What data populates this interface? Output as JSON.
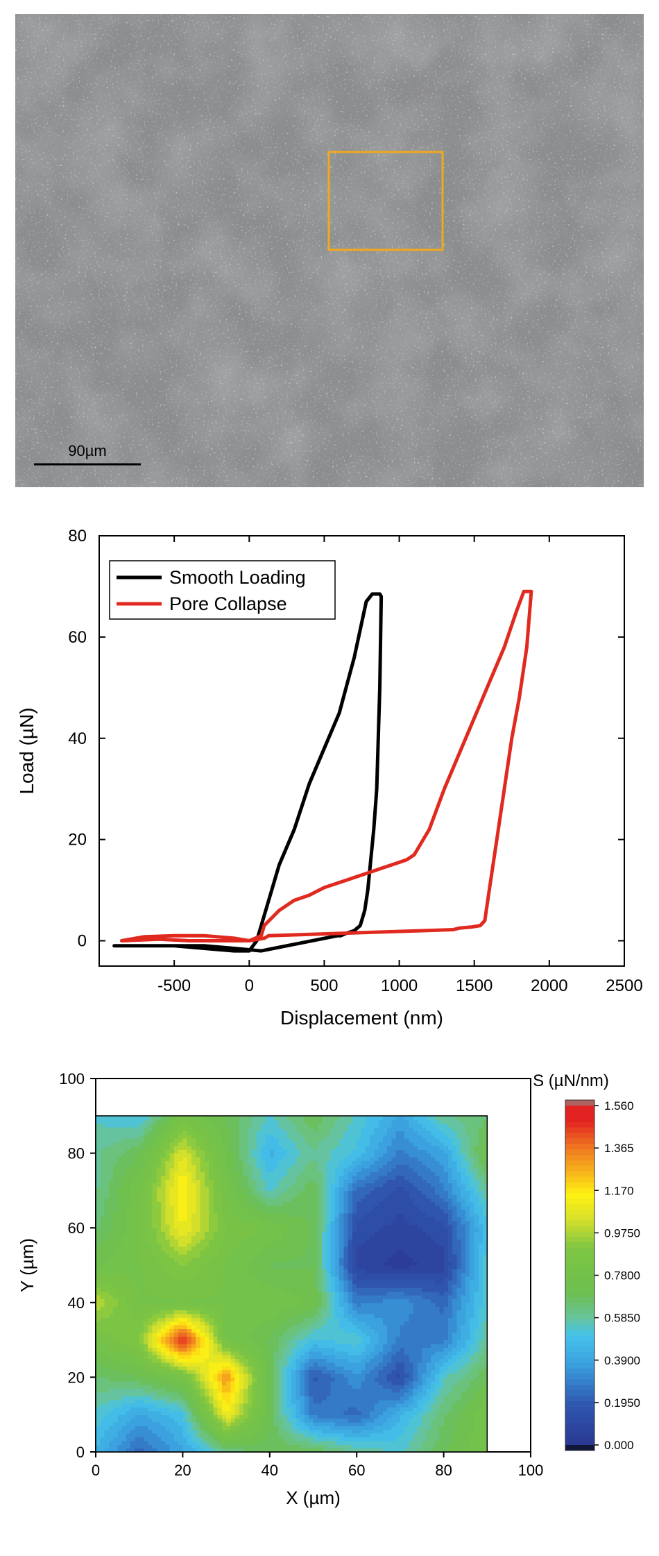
{
  "micrograph": {
    "scale_bar_label": "90µm",
    "roi_color": "#f2a81d",
    "background_color": "#8c8d8e"
  },
  "chart_data": [
    {
      "type": "line",
      "xlabel": "Displacement (nm)",
      "ylabel": "Load (µN)",
      "xlim": [
        -1000,
        2500
      ],
      "ylim": [
        -5,
        80
      ],
      "xticks": [
        "-500",
        "0",
        "500",
        "1000",
        "1500",
        "2000",
        "2500"
      ],
      "yticks": [
        "0",
        "20",
        "40",
        "60",
        "80"
      ],
      "legend_position": "top-left",
      "series": [
        {
          "name": "Smooth Loading",
          "color": "#000000",
          "x": [
            -900,
            -700,
            -500,
            -300,
            -100,
            0,
            50,
            100,
            150,
            200,
            300,
            400,
            500,
            600,
            700,
            780,
            820,
            850,
            870,
            880,
            870,
            860,
            850,
            830,
            810,
            790,
            770,
            740,
            700,
            650,
            610,
            590,
            80,
            -100,
            -300,
            -500,
            -700,
            -900
          ],
          "y": [
            -1,
            -1,
            -1,
            -1.5,
            -2,
            -2,
            0,
            5,
            10,
            15,
            22,
            31,
            38,
            45,
            56,
            67,
            68.5,
            68.5,
            68.5,
            68,
            50,
            40,
            30,
            22,
            16,
            10,
            6,
            3,
            2,
            1.5,
            1,
            1,
            -2,
            -1.5,
            -1,
            -1,
            -1,
            -1
          ]
        },
        {
          "name": "Pore Collapse",
          "color": "#e02a20",
          "x": [
            -850,
            -700,
            -500,
            -300,
            -100,
            0,
            80,
            100,
            200,
            300,
            400,
            500,
            600,
            700,
            800,
            900,
            1000,
            1050,
            1100,
            1200,
            1300,
            1400,
            1500,
            1600,
            1700,
            1780,
            1830,
            1870,
            1880,
            1850,
            1800,
            1750,
            1700,
            1650,
            1600,
            1570,
            1540,
            1480,
            1400,
            1360,
            130,
            100,
            0,
            -200,
            -400,
            -600,
            -850
          ],
          "y": [
            0,
            0.8,
            1,
            1,
            0.5,
            0,
            1,
            3,
            6,
            8,
            9,
            10.5,
            11.5,
            12.5,
            13.5,
            14.5,
            15.5,
            16,
            17,
            22,
            30,
            37,
            44,
            51,
            58,
            65,
            69,
            69,
            69,
            58,
            48,
            40,
            30,
            20,
            10,
            4,
            3,
            2.7,
            2.5,
            2.2,
            1,
            0.5,
            0,
            0,
            0,
            0.3,
            0
          ]
        }
      ]
    },
    {
      "type": "heatmap",
      "xlabel": "X (µm)",
      "ylabel": "Y (µm)",
      "xlim": [
        0,
        100
      ],
      "ylim": [
        0,
        100
      ],
      "xticks": [
        "0",
        "20",
        "40",
        "60",
        "80",
        "100"
      ],
      "yticks": [
        "0",
        "20",
        "40",
        "60",
        "80",
        "100"
      ],
      "colorbar_title": "S (µN/nm)",
      "colorbar_ticks": [
        "0.000",
        "0.1950",
        "0.3900",
        "0.5850",
        "0.7800",
        "0.9750",
        "1.170",
        "1.365",
        "1.560"
      ],
      "colorbar_range": [
        0,
        1.56
      ],
      "grid_x": [
        0,
        10,
        20,
        30,
        40,
        50,
        60,
        70,
        80,
        90
      ],
      "grid_y": [
        0,
        10,
        20,
        30,
        40,
        50,
        60,
        70,
        80,
        90
      ],
      "values": [
        [
          0.45,
          0.25,
          0.4,
          0.6,
          0.7,
          0.7,
          0.6,
          0.55,
          0.7,
          0.8
        ],
        [
          0.55,
          0.4,
          0.5,
          1.1,
          0.7,
          0.3,
          0.25,
          0.45,
          0.65,
          0.8
        ],
        [
          0.65,
          0.7,
          0.8,
          1.3,
          0.7,
          0.2,
          0.35,
          0.15,
          0.55,
          0.7
        ],
        [
          0.8,
          0.9,
          1.5,
          0.8,
          0.7,
          0.5,
          0.55,
          0.3,
          0.3,
          0.6
        ],
        [
          1.0,
          0.8,
          0.8,
          0.8,
          0.8,
          0.75,
          0.3,
          0.35,
          0.25,
          0.55
        ],
        [
          0.75,
          0.8,
          0.9,
          0.8,
          0.7,
          0.7,
          0.1,
          0.05,
          0.1,
          0.55
        ],
        [
          0.65,
          0.8,
          1.1,
          0.85,
          0.8,
          0.7,
          0.15,
          0.1,
          0.15,
          0.5
        ],
        [
          0.6,
          0.8,
          1.15,
          0.8,
          0.55,
          0.7,
          0.25,
          0.15,
          0.3,
          0.6
        ],
        [
          0.6,
          0.7,
          1.05,
          0.75,
          0.45,
          0.6,
          0.5,
          0.3,
          0.4,
          0.75
        ],
        [
          0.55,
          0.5,
          0.8,
          0.7,
          0.55,
          0.7,
          0.55,
          0.4,
          0.6,
          0.65
        ]
      ]
    }
  ]
}
